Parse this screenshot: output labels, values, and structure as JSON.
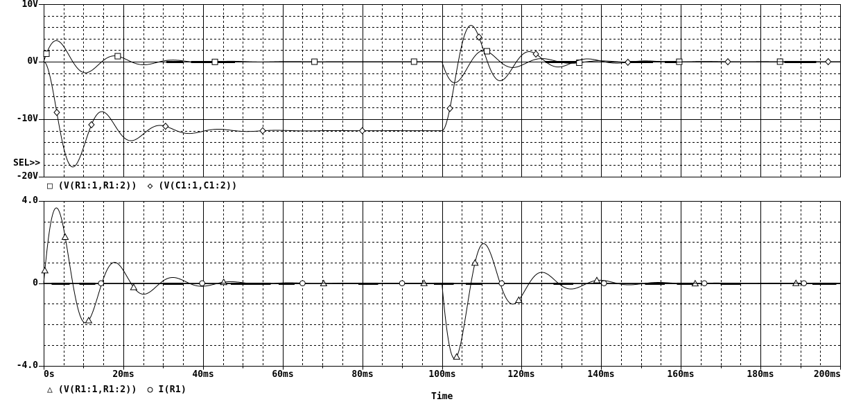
{
  "sel_indicator": "SEL>>",
  "xlabel": "Time",
  "colors": {
    "ink": "#000000",
    "background": "#ffffff"
  },
  "xticks": [
    {
      "label": "0s",
      "t": 0
    },
    {
      "label": "20ms",
      "t": 20
    },
    {
      "label": "40ms",
      "t": 40
    },
    {
      "label": "60ms",
      "t": 60
    },
    {
      "label": "80ms",
      "t": 80
    },
    {
      "label": "100ms",
      "t": 100
    },
    {
      "label": "120ms",
      "t": 120
    },
    {
      "label": "140ms",
      "t": 140
    },
    {
      "label": "160ms",
      "t": 160
    },
    {
      "label": "180ms",
      "t": 180
    },
    {
      "label": "200ms",
      "t": 200
    }
  ],
  "chart_data": [
    {
      "type": "line",
      "plot": "top",
      "xlim": [
        0,
        200
      ],
      "ylim": [
        -20,
        10
      ],
      "x_unit": "ms",
      "x_major_step": 20,
      "x_minor_step": 5,
      "y_minor_step": 2,
      "y_solid_gridlines": [
        0,
        -10
      ],
      "grid": "on",
      "yticks": [
        {
          "label": "10V",
          "v": 10
        },
        {
          "label": "0V",
          "v": 0
        },
        {
          "label": "-10V",
          "v": -10
        },
        {
          "label": "-20V",
          "v": -20
        }
      ],
      "series": [
        {
          "name": "V(R1:1,R1:2)",
          "legend_label": "(V(R1:1,R1:2))",
          "marker": "square",
          "glyph": "□",
          "model": {
            "type": "damped_sine",
            "A": 4.95,
            "alpha": 0.088,
            "omega": 0.43,
            "segments": [
              {
                "t0": 0,
                "sign": 1
              },
              {
                "t0": 100,
                "sign": -1
              }
            ]
          },
          "marker_t": [
            0.7,
            18.6,
            43,
            68,
            93,
            111.3,
            134.5,
            159.6,
            184.9
          ],
          "key_points": [
            [
              0,
              0
            ],
            [
              3.2,
              3.66
            ],
            [
              10.5,
              -1.9
            ],
            [
              17.9,
              1.0
            ],
            [
              25.2,
              -0.5
            ],
            [
              40,
              0
            ],
            [
              100,
              0
            ],
            [
              103.2,
              -3.66
            ],
            [
              110.5,
              1.9
            ],
            [
              117.8,
              -1.0
            ],
            [
              125.1,
              0.5
            ],
            [
              140,
              0
            ],
            [
              200,
              0
            ]
          ]
        },
        {
          "name": "V(C1:1,C1:2)",
          "legend_label": "(V(C1:1,C1:2))",
          "marker": "diamond",
          "glyph": "◇",
          "model": {
            "type": "damped_step",
            "alpha": 0.088,
            "omega": 0.43,
            "segments": [
              {
                "t0": 0,
                "from": 0,
                "to": -12
              },
              {
                "t0": 100,
                "from": -12,
                "to": 0
              }
            ]
          },
          "marker_t": [
            3.3,
            12,
            30.6,
            55,
            80,
            102,
            109.3,
            123.6,
            146.7,
            171.8,
            197
          ],
          "key_points": [
            [
              0,
              0
            ],
            [
              7.3,
              -18.5
            ],
            [
              14.6,
              -8.7
            ],
            [
              21.9,
              -14.0
            ],
            [
              29.2,
              -11.1
            ],
            [
              36.5,
              -12.6
            ],
            [
              60,
              -12
            ],
            [
              100,
              -12
            ],
            [
              107.3,
              6.3
            ],
            [
              114.6,
              -3.4
            ],
            [
              121.9,
              1.9
            ],
            [
              129.2,
              -1.0
            ],
            [
              160,
              0
            ],
            [
              200,
              0
            ]
          ]
        }
      ],
      "bold_zero_segments": [
        [
          30.8,
          35
        ],
        [
          37,
          48
        ],
        [
          126,
          134
        ],
        [
          146,
          153
        ],
        [
          156,
          160
        ],
        [
          186,
          194
        ]
      ]
    },
    {
      "type": "line",
      "plot": "bottom",
      "xlim": [
        0,
        200
      ],
      "ylim": [
        -4,
        4
      ],
      "x_unit": "ms",
      "x_major_step": 20,
      "x_minor_step": 5,
      "y_minor_step": 1,
      "y_solid_gridlines": [
        0
      ],
      "grid": "on",
      "yticks": [
        {
          "label": "4.0",
          "v": 4
        },
        {
          "label": "0",
          "v": 0
        },
        {
          "label": "-4.0",
          "v": -4
        }
      ],
      "series": [
        {
          "name": "V(R1:1,R1:2)",
          "legend_label": "(V(R1:1,R1:2))",
          "marker": "triangle",
          "glyph": "△",
          "model": {
            "type": "damped_sine",
            "A": 4.95,
            "alpha": 0.088,
            "omega": 0.43,
            "segments": [
              {
                "t0": 0,
                "sign": 1
              },
              {
                "t0": 100,
                "sign": -1
              }
            ]
          },
          "marker_t": [
            0.3,
            5.4,
            11.3,
            22.6,
            45.2,
            70.3,
            95.5,
            103.7,
            108.3,
            119.3,
            138.9,
            163.6,
            188.9
          ],
          "key_points": [
            [
              0,
              0
            ],
            [
              3.2,
              3.66
            ],
            [
              10.5,
              -1.9
            ],
            [
              17.9,
              1.0
            ],
            [
              25.2,
              -0.5
            ],
            [
              40,
              0
            ],
            [
              100,
              0
            ],
            [
              103.2,
              -3.66
            ],
            [
              110.5,
              1.9
            ],
            [
              117.8,
              -1.0
            ],
            [
              125.1,
              0.5
            ],
            [
              140,
              0
            ],
            [
              200,
              0
            ]
          ]
        },
        {
          "name": "I(R1)",
          "legend_label": "I(R1)",
          "marker": "circle",
          "glyph": "○",
          "model": {
            "type": "flat",
            "value": 0
          },
          "marker_t": [
            14.4,
            39.8,
            65,
            90,
            115,
            140.7,
            165.9,
            190.9
          ],
          "key_points": [
            [
              0,
              0
            ],
            [
              200,
              0
            ]
          ]
        }
      ],
      "bold_zero_segments": [
        [
          2,
          6.5
        ],
        [
          9,
          13
        ],
        [
          30,
          35
        ],
        [
          47,
          57
        ],
        [
          59,
          63
        ],
        [
          79,
          84
        ],
        [
          98,
          103
        ],
        [
          106,
          110
        ],
        [
          128,
          133
        ],
        [
          151,
          156
        ],
        [
          159,
          163
        ],
        [
          170,
          175
        ],
        [
          193,
          199
        ]
      ]
    }
  ]
}
